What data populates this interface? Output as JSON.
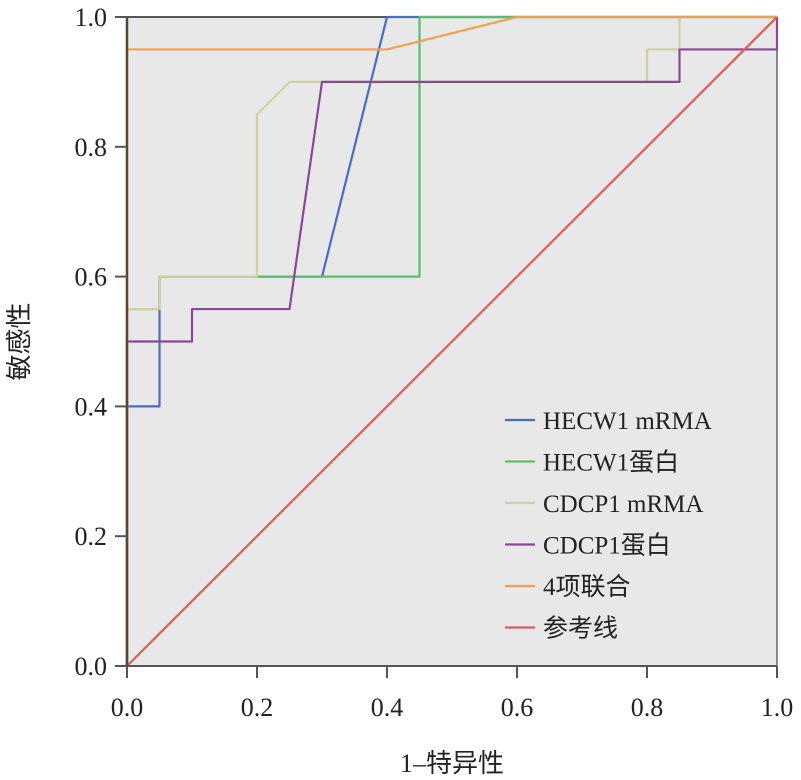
{
  "chart_data": {
    "type": "line",
    "title": "",
    "xlabel": "1–特异性",
    "ylabel": "敏感性",
    "xlim": [
      0,
      1
    ],
    "ylim": [
      0,
      1
    ],
    "xticks": [
      "0.0",
      "0.2",
      "0.4",
      "0.6",
      "0.8",
      "1.0"
    ],
    "yticks": [
      "0.0",
      "0.2",
      "0.4",
      "0.6",
      "0.8",
      "1.0"
    ],
    "legend_position": "bottom-right",
    "series": [
      {
        "name": "HECW1 mRMA",
        "color": "#4a6cc0",
        "points": [
          [
            0,
            0
          ],
          [
            0,
            0.4
          ],
          [
            0.05,
            0.4
          ],
          [
            0.05,
            0.6
          ],
          [
            0.3,
            0.6
          ],
          [
            0.4,
            1
          ],
          [
            1,
            1
          ]
        ]
      },
      {
        "name": "HECW1蛋白",
        "color": "#5cbe6c",
        "points": [
          [
            0,
            0
          ],
          [
            0,
            0.55
          ],
          [
            0.05,
            0.55
          ],
          [
            0.05,
            0.6
          ],
          [
            0.45,
            0.6
          ],
          [
            0.45,
            1
          ],
          [
            1,
            1
          ]
        ]
      },
      {
        "name": "CDCP1 mRMA",
        "color": "#d2cfa2",
        "points": [
          [
            0,
            0
          ],
          [
            0,
            0.55
          ],
          [
            0.05,
            0.55
          ],
          [
            0.05,
            0.6
          ],
          [
            0.2,
            0.6
          ],
          [
            0.2,
            0.85
          ],
          [
            0.25,
            0.9
          ],
          [
            0.8,
            0.9
          ],
          [
            0.8,
            0.95
          ],
          [
            0.85,
            0.95
          ],
          [
            0.85,
            1
          ],
          [
            1,
            1
          ]
        ]
      },
      {
        "name": "CDCP1蛋白",
        "color": "#8a4898",
        "points": [
          [
            0,
            0
          ],
          [
            0,
            0.5
          ],
          [
            0.1,
            0.5
          ],
          [
            0.1,
            0.55
          ],
          [
            0.25,
            0.55
          ],
          [
            0.3,
            0.9
          ],
          [
            0.85,
            0.9
          ],
          [
            0.85,
            0.95
          ],
          [
            1,
            0.95
          ],
          [
            1,
            1
          ]
        ]
      },
      {
        "name": "4项联合",
        "color": "#f2a050",
        "points": [
          [
            0,
            0
          ],
          [
            0,
            0.95
          ],
          [
            0.4,
            0.95
          ],
          [
            0.6,
            1
          ],
          [
            1,
            1
          ]
        ]
      },
      {
        "name": "参考线",
        "color": "#e25a5a",
        "points": [
          [
            0,
            0
          ],
          [
            1,
            1
          ]
        ]
      }
    ]
  }
}
